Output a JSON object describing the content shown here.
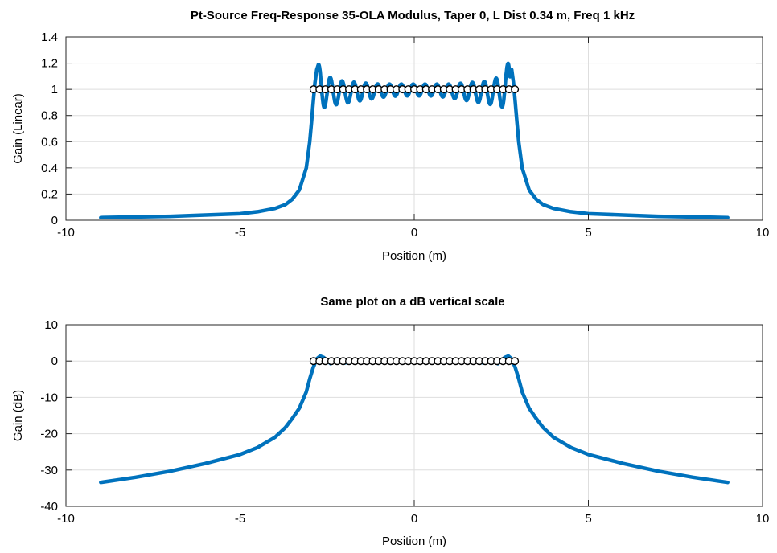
{
  "chart_data": [
    {
      "type": "line",
      "title": "Pt-Source Freq-Response 35-OLA Modulus, Taper 0, L Dist 0.34 m, Freq 1 kHz",
      "xlabel": "Position (m)",
      "ylabel": "Gain (Linear)",
      "xlim": [
        -10,
        10
      ],
      "ylim": [
        0,
        1.4
      ],
      "xticks": [
        -10,
        -5,
        0,
        5,
        10
      ],
      "xtick_labels": [
        "-10",
        "-5",
        "0",
        "5",
        "10"
      ],
      "yticks": [
        0,
        0.2,
        0.4,
        0.6,
        0.8,
        1,
        1.2,
        1.4
      ],
      "ytick_labels": [
        "0",
        "0.2",
        "0.4",
        "0.6",
        "0.8",
        "1",
        "1.2",
        "1.4"
      ],
      "grid": true,
      "series": [
        {
          "color": "#0072bd",
          "x": [
            -9,
            -8,
            -7,
            -6,
            -5,
            -4.5,
            -4,
            -3.7,
            -3.5,
            -3.3,
            -3.1,
            -3.0,
            -2.95,
            -2.9,
            -2.85,
            -2.8,
            -2.75,
            -2.7,
            -2.6,
            -2.5,
            -2.3,
            -2.0,
            -1.5,
            -1.0,
            -0.5,
            0,
            0.5,
            1.0,
            1.5,
            2.0,
            2.3,
            2.5,
            2.6,
            2.7,
            2.75,
            2.8,
            2.85,
            2.9,
            2.95,
            3.0,
            3.1,
            3.3,
            3.5,
            3.7,
            4,
            4.5,
            5,
            6,
            7,
            8,
            9
          ],
          "y": [
            0.02,
            0.025,
            0.03,
            0.04,
            0.05,
            0.065,
            0.09,
            0.12,
            0.16,
            0.23,
            0.4,
            0.6,
            0.75,
            0.9,
            1.05,
            1.15,
            1.19,
            1.2,
            1.17,
            1.1,
            1.08,
            1.06,
            1.05,
            1.04,
            1.04,
            1.04,
            1.04,
            1.04,
            1.05,
            1.06,
            1.08,
            1.1,
            1.17,
            1.2,
            1.19,
            1.15,
            1.05,
            0.9,
            0.75,
            0.6,
            0.4,
            0.23,
            0.16,
            0.12,
            0.09,
            0.065,
            0.05,
            0.04,
            0.03,
            0.025,
            0.02
          ],
          "y_lower_envelope": [
            0.85,
            0.88,
            0.9,
            0.92,
            0.94,
            0.95,
            0.95,
            0.95,
            0.94,
            0.92,
            0.9,
            0.88,
            0.85
          ]
        }
      ],
      "sources": {
        "count": 35,
        "x_start": -2.89,
        "x_end": 2.89,
        "y": 1,
        "marker": "circle"
      }
    },
    {
      "type": "line",
      "title": "Same plot on a dB vertical scale",
      "xlabel": "Position (m)",
      "ylabel": "Gain (dB)",
      "xlim": [
        -10,
        10
      ],
      "ylim": [
        -40,
        10
      ],
      "xticks": [
        -10,
        -5,
        0,
        5,
        10
      ],
      "xtick_labels": [
        "-10",
        "-5",
        "0",
        "5",
        "10"
      ],
      "yticks": [
        -40,
        -30,
        -20,
        -10,
        0,
        10
      ],
      "ytick_labels": [
        "-40",
        "-30",
        "-20",
        "-10",
        "0",
        "10"
      ],
      "grid": true,
      "series": [
        {
          "color": "#0072bd",
          "x": [
            -9,
            -8,
            -7,
            -6,
            -5,
            -4.5,
            -4,
            -3.7,
            -3.5,
            -3.3,
            -3.1,
            -3.0,
            -2.9,
            -2.8,
            -2.7,
            -2.6,
            -2.4,
            -2.2,
            -2.0,
            -1.5,
            -1.0,
            0,
            1.0,
            1.5,
            2.0,
            2.2,
            2.4,
            2.6,
            2.7,
            2.8,
            2.9,
            3.0,
            3.1,
            3.3,
            3.5,
            3.7,
            4,
            4.5,
            5,
            6,
            7,
            8,
            9
          ],
          "y": [
            -33.4,
            -32.0,
            -30.3,
            -28.2,
            -25.7,
            -23.8,
            -21.0,
            -18.3,
            -15.8,
            -13.0,
            -8.5,
            -4.9,
            -1.8,
            0.6,
            1.4,
            1.0,
            -0.7,
            0.6,
            -0.5,
            0.4,
            -0.3,
            0.2,
            -0.3,
            0.4,
            -0.5,
            0.6,
            -0.7,
            1.0,
            1.4,
            0.6,
            -1.8,
            -4.9,
            -8.5,
            -13.0,
            -15.8,
            -18.3,
            -21.0,
            -23.8,
            -25.7,
            -28.2,
            -30.3,
            -32.0,
            -33.4
          ]
        }
      ],
      "sources": {
        "count": 35,
        "x_start": -2.89,
        "x_end": 2.89,
        "y": 0,
        "marker": "circle"
      }
    }
  ]
}
